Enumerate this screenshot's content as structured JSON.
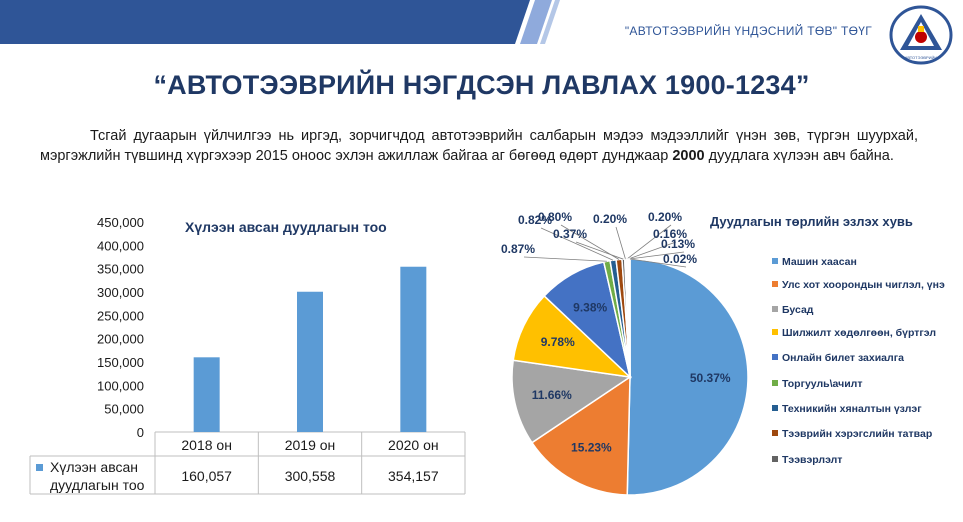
{
  "header": {
    "org_name": "\"АВТОТЭЭВРИЙН ҮНДЭСНИЙ ТӨВ\" ТӨҮГ",
    "title": "“АВТОТЭЭВРИЙН НЭГДСЭН ЛАВЛАХ 1900-1234”",
    "logo_text": "АВТОТЭЭВРИЙН"
  },
  "intro": {
    "text_before": "Тсгай дугаарын үйлчилгээ нь иргэд, зорчигчдод автотээврийн салбарын мэдээ мэдээллийг үнэн зөв, түргэн шуурхай, мэргэжлийн түвшинд хүргэхээр 2015 оноос эхлэн ажиллаж байгаа аг бөгөөд өдөрт дунджаар ",
    "highlight": "2000",
    "text_after": " дуудлага хүлээн авч байна."
  },
  "colors": {
    "title": "#1f3864",
    "header_band_dark": "#2f5597",
    "header_band_light": "#8faadc",
    "bar": "#5b9bd5"
  },
  "chart_data": [
    {
      "type": "bar",
      "title": "Хүлээн авсан дуудлагын тоо",
      "categories": [
        "2018 он",
        "2019 он",
        "2020 он"
      ],
      "series": [
        {
          "name": "Хүлээн авсан дуудлагын тоо",
          "values": [
            160057,
            300558,
            354157
          ]
        }
      ],
      "value_labels": [
        "160,057",
        "300,558",
        "354,157"
      ],
      "ylim": [
        0,
        450000
      ],
      "yticks": [
        "0",
        "50,000",
        "100,000",
        "150,000",
        "200,000",
        "250,000",
        "300,000",
        "350,000",
        "400,000",
        "450,000"
      ],
      "data_table": true,
      "color": "#5b9bd5"
    },
    {
      "type": "pie",
      "title": "Дуудлагын төрлийн эзлэх хувь",
      "legend_position": "right",
      "slices": [
        {
          "label": "Машин хаасан",
          "value": 50.37,
          "text": "50.37%",
          "color": "#5b9bd5"
        },
        {
          "label": "Улс хот хоорондын чиглэл, үнэ",
          "value": 15.23,
          "text": "15.23%",
          "color": "#ed7d31"
        },
        {
          "label": "Бусад",
          "value": 11.66,
          "text": "11.66%",
          "color": "#a5a5a5"
        },
        {
          "label": "Шилжилт хөдөлгөөн, бүртгэл",
          "value": 9.78,
          "text": "9.78%",
          "color": "#ffc000"
        },
        {
          "label": "Онлайн билет захиалга",
          "value": 9.38,
          "text": "9.38%",
          "color": "#4472c4"
        },
        {
          "label": "Торгууль\\ачилт",
          "value": 0.87,
          "text": "0.87%",
          "color": "#70ad47"
        },
        {
          "label": "Техникийн хяналтын үзлэг",
          "value": 0.82,
          "text": "0.82%",
          "color": "#255e91"
        },
        {
          "label": "Тээврийн хэрэгслийн татвар",
          "value": 0.8,
          "text": "0.80%",
          "color": "#9e480e"
        },
        {
          "label": "Тээвэрлэлт",
          "value": 0.37,
          "text": "0.37%",
          "color": "#636363"
        },
        {
          "label": "",
          "value": 0.2,
          "text": "0.20%",
          "color": "#997300"
        },
        {
          "label": "",
          "value": 0.2,
          "text": "0.20%",
          "color": "#264478"
        },
        {
          "label": "",
          "value": 0.16,
          "text": "0.16%",
          "color": "#43682b"
        },
        {
          "label": "",
          "value": 0.13,
          "text": "0.13%",
          "color": "#698ed0"
        },
        {
          "label": "",
          "value": 0.02,
          "text": "0.02%",
          "color": "#f1975a"
        }
      ]
    }
  ]
}
